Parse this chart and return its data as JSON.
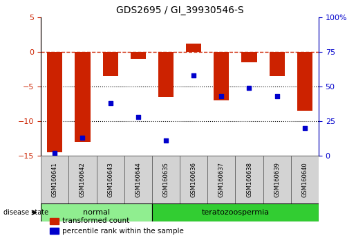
{
  "title": "GDS2695 / GI_39930546-S",
  "samples": [
    "GSM160641",
    "GSM160642",
    "GSM160643",
    "GSM160644",
    "GSM160635",
    "GSM160636",
    "GSM160637",
    "GSM160638",
    "GSM160639",
    "GSM160640"
  ],
  "transformed_count": [
    -14.5,
    -13.0,
    -3.5,
    -1.0,
    -6.5,
    1.2,
    -7.0,
    -1.5,
    -3.5,
    -8.5
  ],
  "percentile_rank": [
    2,
    13,
    38,
    28,
    11,
    58,
    43,
    49,
    43,
    20
  ],
  "groups": [
    {
      "label": "normal",
      "indices": [
        0,
        1,
        2,
        3
      ],
      "color": "#90ee90"
    },
    {
      "label": "teratozoospermia",
      "indices": [
        4,
        5,
        6,
        7,
        8,
        9
      ],
      "color": "#32cd32"
    }
  ],
  "bar_color": "#cc2200",
  "dot_color": "#0000cc",
  "left_ylim": [
    -15,
    5
  ],
  "right_ylim": [
    0,
    100
  ],
  "left_yticks": [
    5,
    0,
    -5,
    -10,
    -15
  ],
  "right_yticks": [
    100,
    75,
    50,
    25,
    0
  ],
  "hline_y": 0,
  "dotted_lines": [
    -5,
    -10
  ],
  "bg_color": "#ffffff",
  "legend_red_label": "transformed count",
  "legend_blue_label": "percentile rank within the sample",
  "disease_state_label": "disease state",
  "sample_label_color": "#cccccc",
  "group_border_color": "#000000"
}
